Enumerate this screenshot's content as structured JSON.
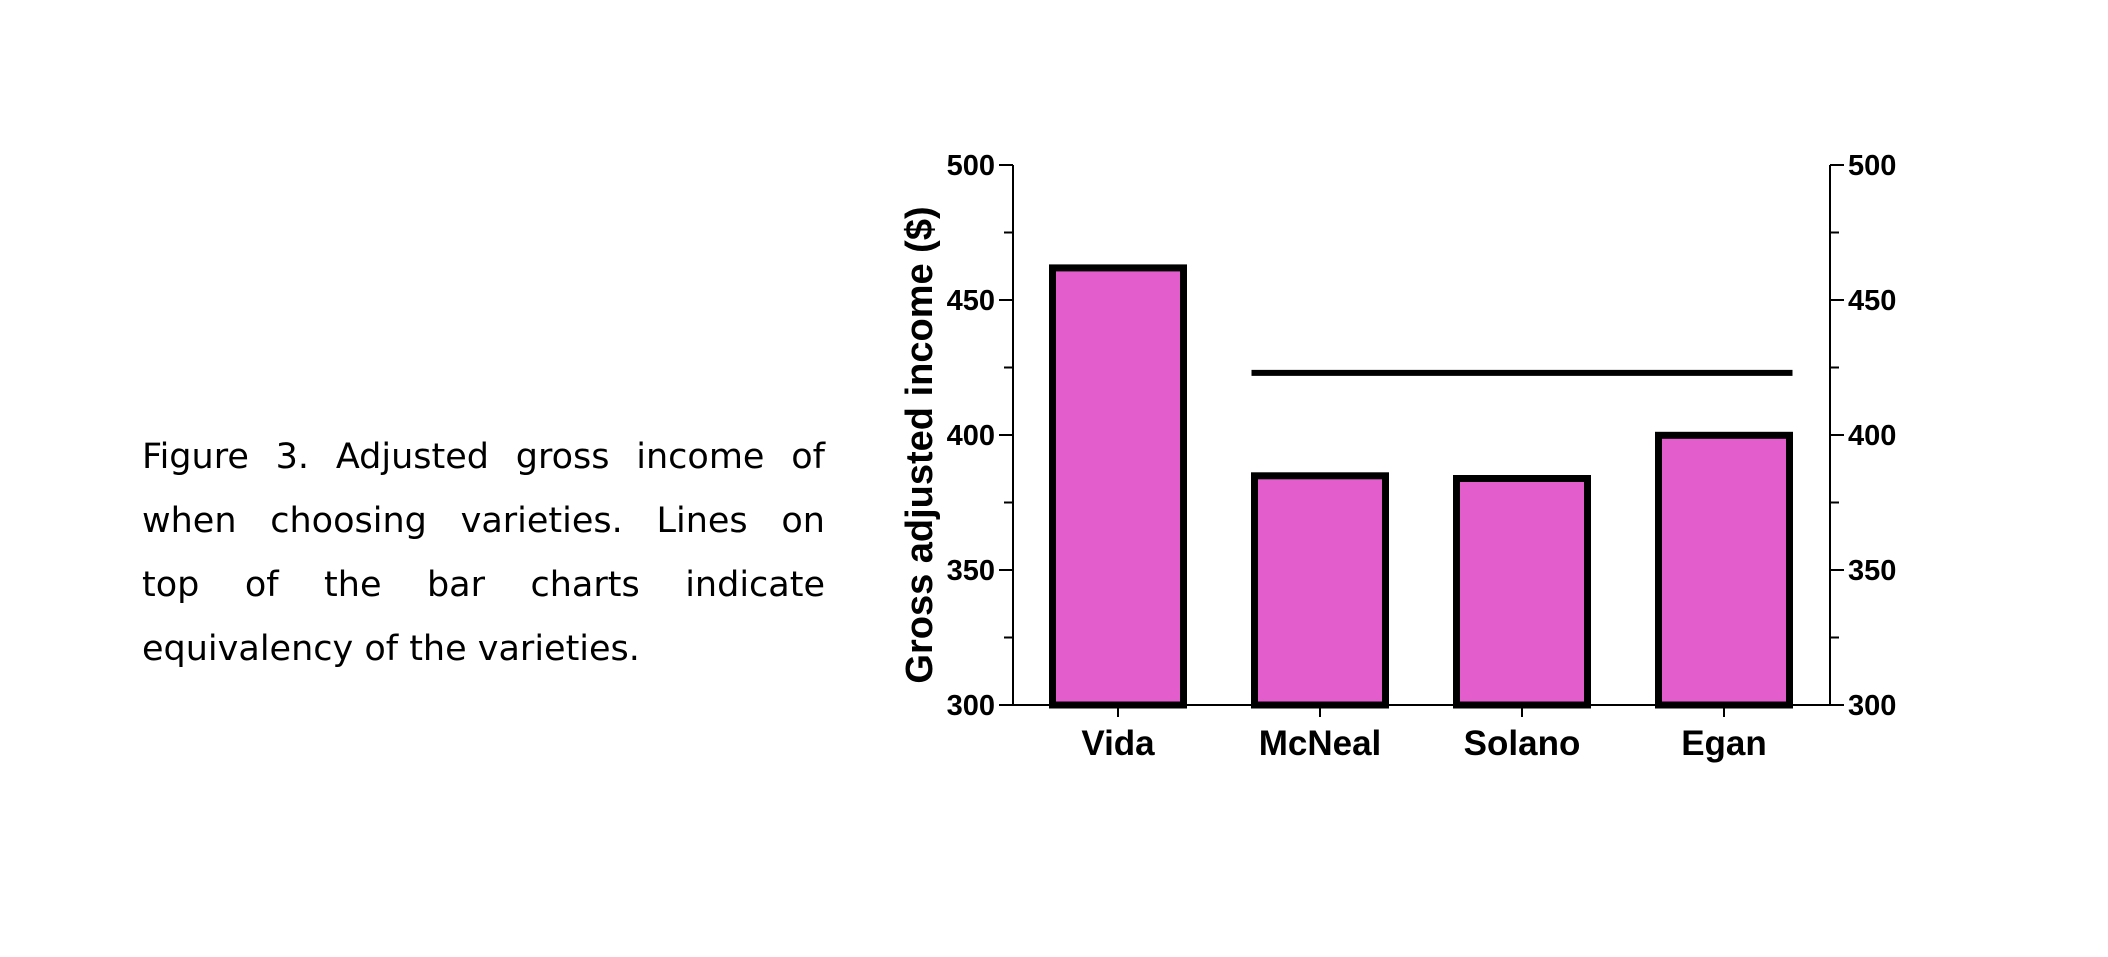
{
  "caption": {
    "lines": [
      "Figure 3.  Adjusted gross income of",
      "when choosing varieties. Lines on",
      "top of the bar charts indicate",
      "equivalency of the varieties."
    ]
  },
  "chart_data": {
    "type": "bar",
    "categories": [
      "Vida",
      "McNeal",
      "Solano",
      "Egan"
    ],
    "values": [
      463,
      386,
      385,
      401
    ],
    "title": "",
    "xlabel": "",
    "ylabel": "Gross adjusted income ($)",
    "ylim": [
      300,
      500
    ],
    "yticks": [
      300,
      350,
      400,
      450,
      500
    ],
    "ytick_labels": [
      "300",
      "350",
      "400",
      "450",
      "500"
    ],
    "secondary_y_axis": true,
    "grid": false,
    "bar_color": "#e35dcc",
    "bar_edge_color": "#000000",
    "equivalency_lines": [
      {
        "from": "McNeal",
        "to": "Egan",
        "y": 423
      }
    ]
  }
}
